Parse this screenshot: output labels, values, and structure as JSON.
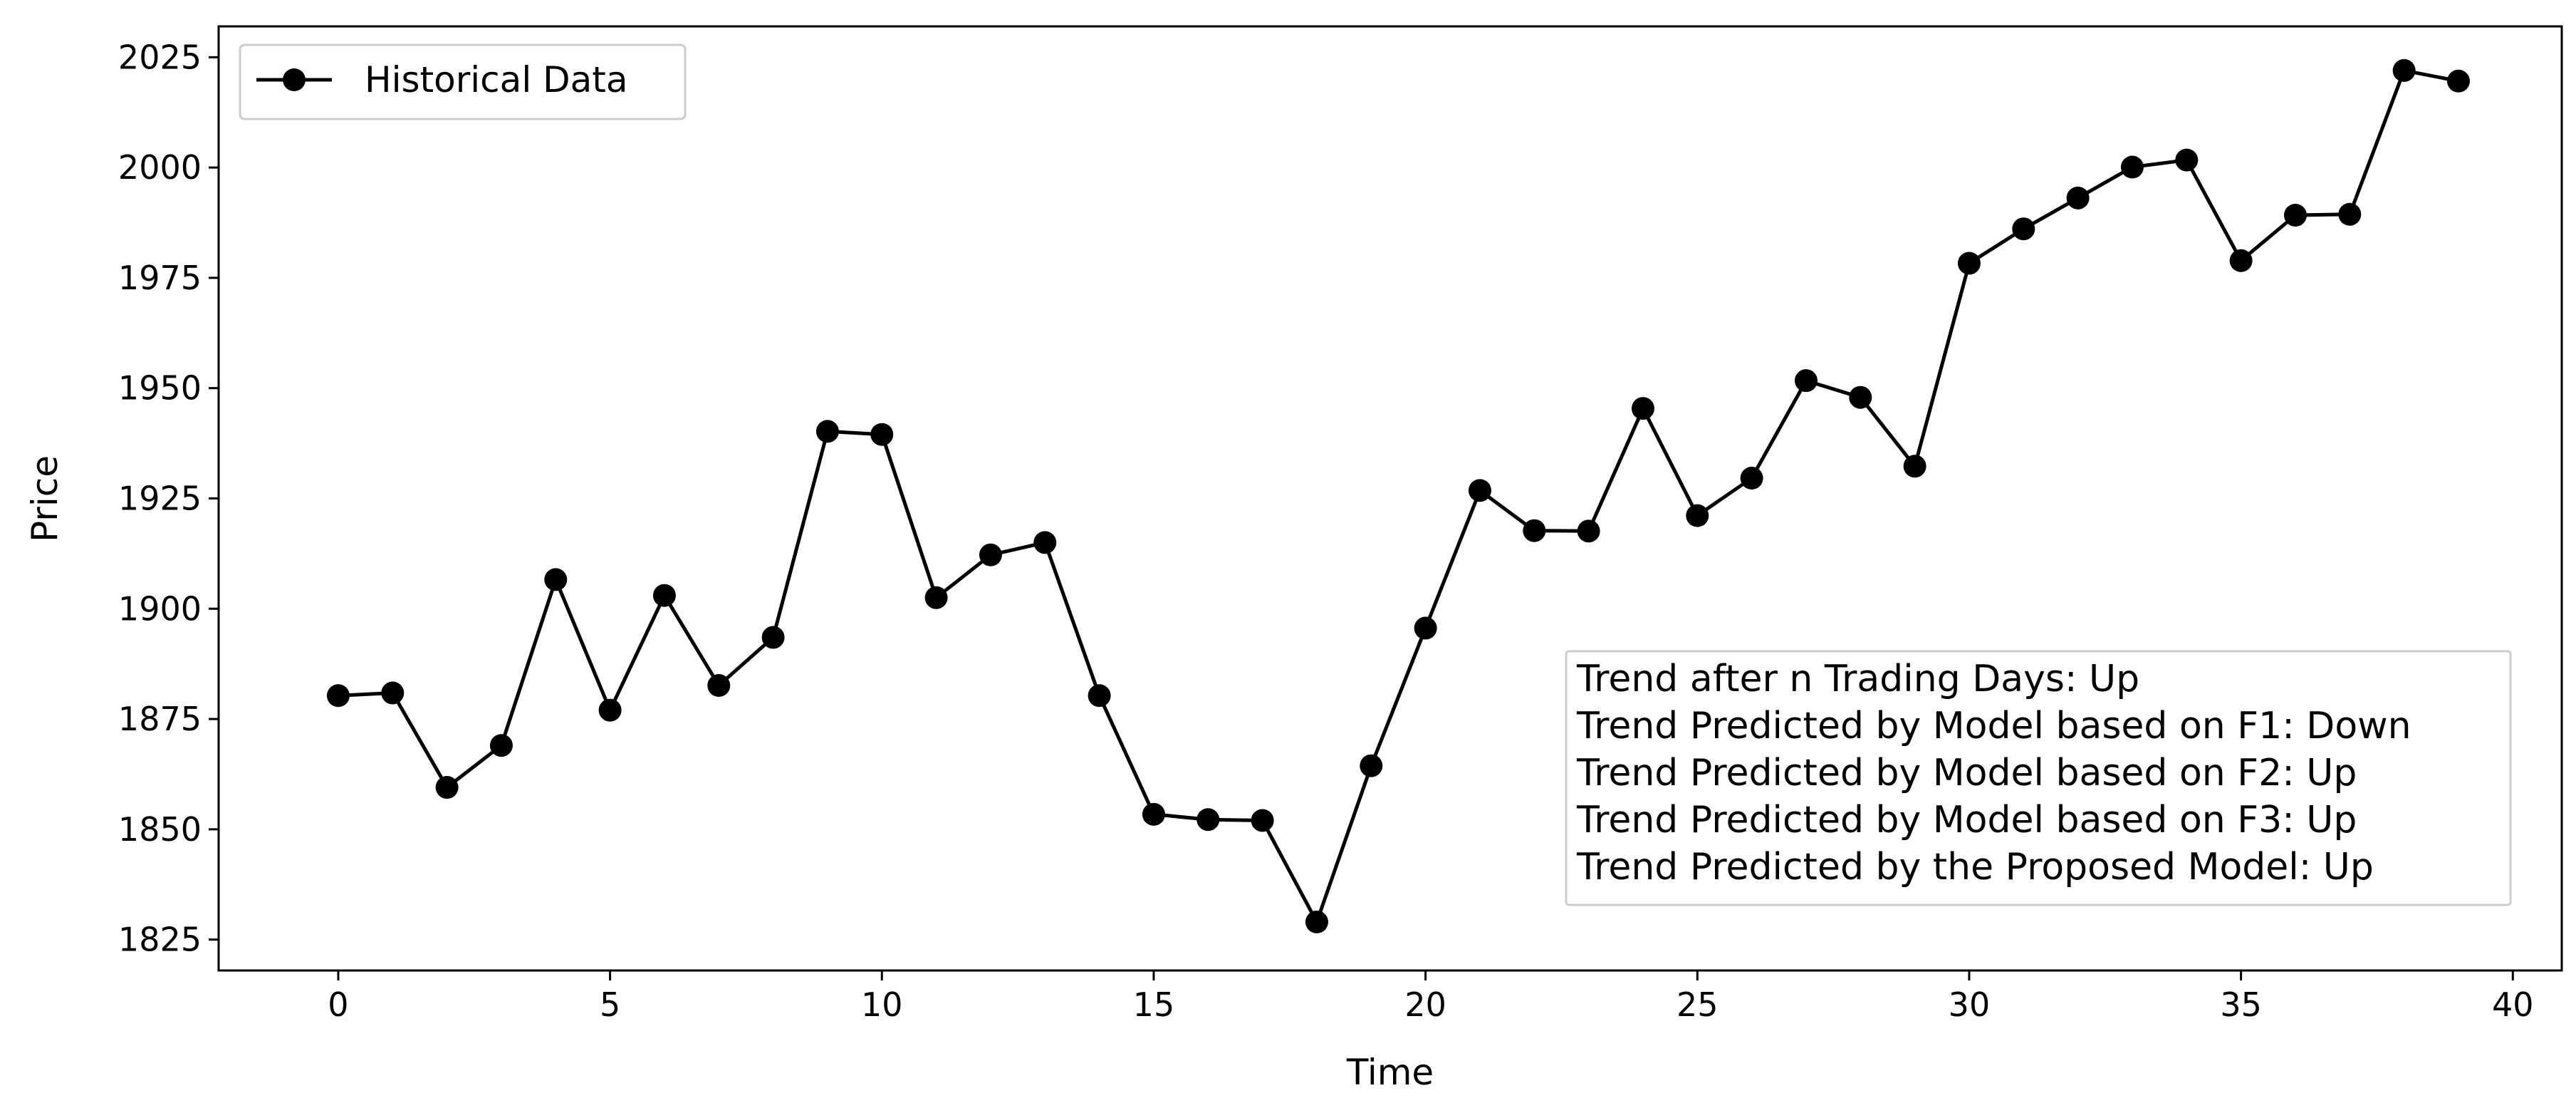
{
  "chart_data": {
    "type": "line",
    "xlabel": "Time",
    "ylabel": "Price",
    "xlim": [
      -2.2,
      40.9
    ],
    "ylim": [
      1818,
      2032
    ],
    "x_ticks": [
      0,
      5,
      10,
      15,
      20,
      25,
      30,
      35,
      40
    ],
    "y_ticks": [
      1825,
      1850,
      1875,
      1900,
      1925,
      1950,
      1975,
      2000,
      2025
    ],
    "grid": false,
    "legend_position": "top-left",
    "series": [
      {
        "name": "Historical Data",
        "color": "#000000",
        "marker": "circle",
        "x": [
          0,
          1,
          2,
          3,
          4,
          5,
          6,
          7,
          8,
          9,
          10,
          11,
          12,
          13,
          14,
          15,
          16,
          17,
          18,
          19,
          20,
          21,
          22,
          23,
          24,
          25,
          26,
          27,
          28,
          29,
          30,
          31,
          32,
          33,
          34,
          35,
          36,
          37,
          38,
          39
        ],
        "values": [
          1880.3,
          1880.9,
          1859.5,
          1869.0,
          1906.6,
          1877.0,
          1903.0,
          1882.6,
          1893.5,
          1940.2,
          1939.5,
          1902.5,
          1912.2,
          1915.0,
          1880.3,
          1853.4,
          1852.2,
          1852.0,
          1829.0,
          1864.4,
          1895.6,
          1926.8,
          1917.7,
          1917.6,
          1945.4,
          1921.1,
          1929.6,
          1951.7,
          1947.9,
          1932.3,
          1978.3,
          1986.1,
          1993.1,
          2000.1,
          2001.7,
          1978.9,
          1989.2,
          1989.4,
          2022.0,
          2019.6
        ]
      }
    ],
    "annotation_lines": [
      "Trend after n Trading Days: Up",
      "Trend Predicted by Model based on F1: Down",
      "Trend Predicted by Model based on F2: Up",
      "Trend Predicted by Model based on F3: Up",
      "Trend Predicted by the Proposed Model: Up"
    ]
  }
}
